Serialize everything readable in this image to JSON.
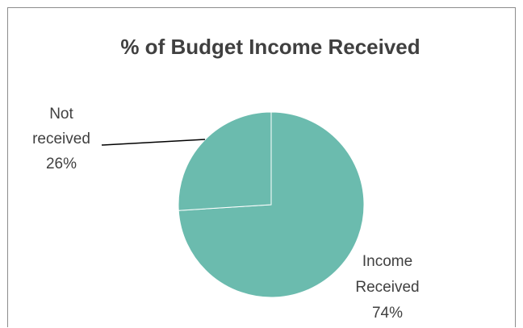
{
  "chart_data": {
    "type": "pie",
    "title": "% of Budget Income Received",
    "slices": [
      {
        "label_lines": [
          "Income",
          "Received"
        ],
        "percent_label": "74%",
        "value": 74,
        "color": "#6bbbae"
      },
      {
        "label_lines": [
          "Not",
          "received"
        ],
        "percent_label": "26%",
        "value": 26,
        "color": "#6bbbae"
      }
    ],
    "edge_color": "#ffffff"
  }
}
